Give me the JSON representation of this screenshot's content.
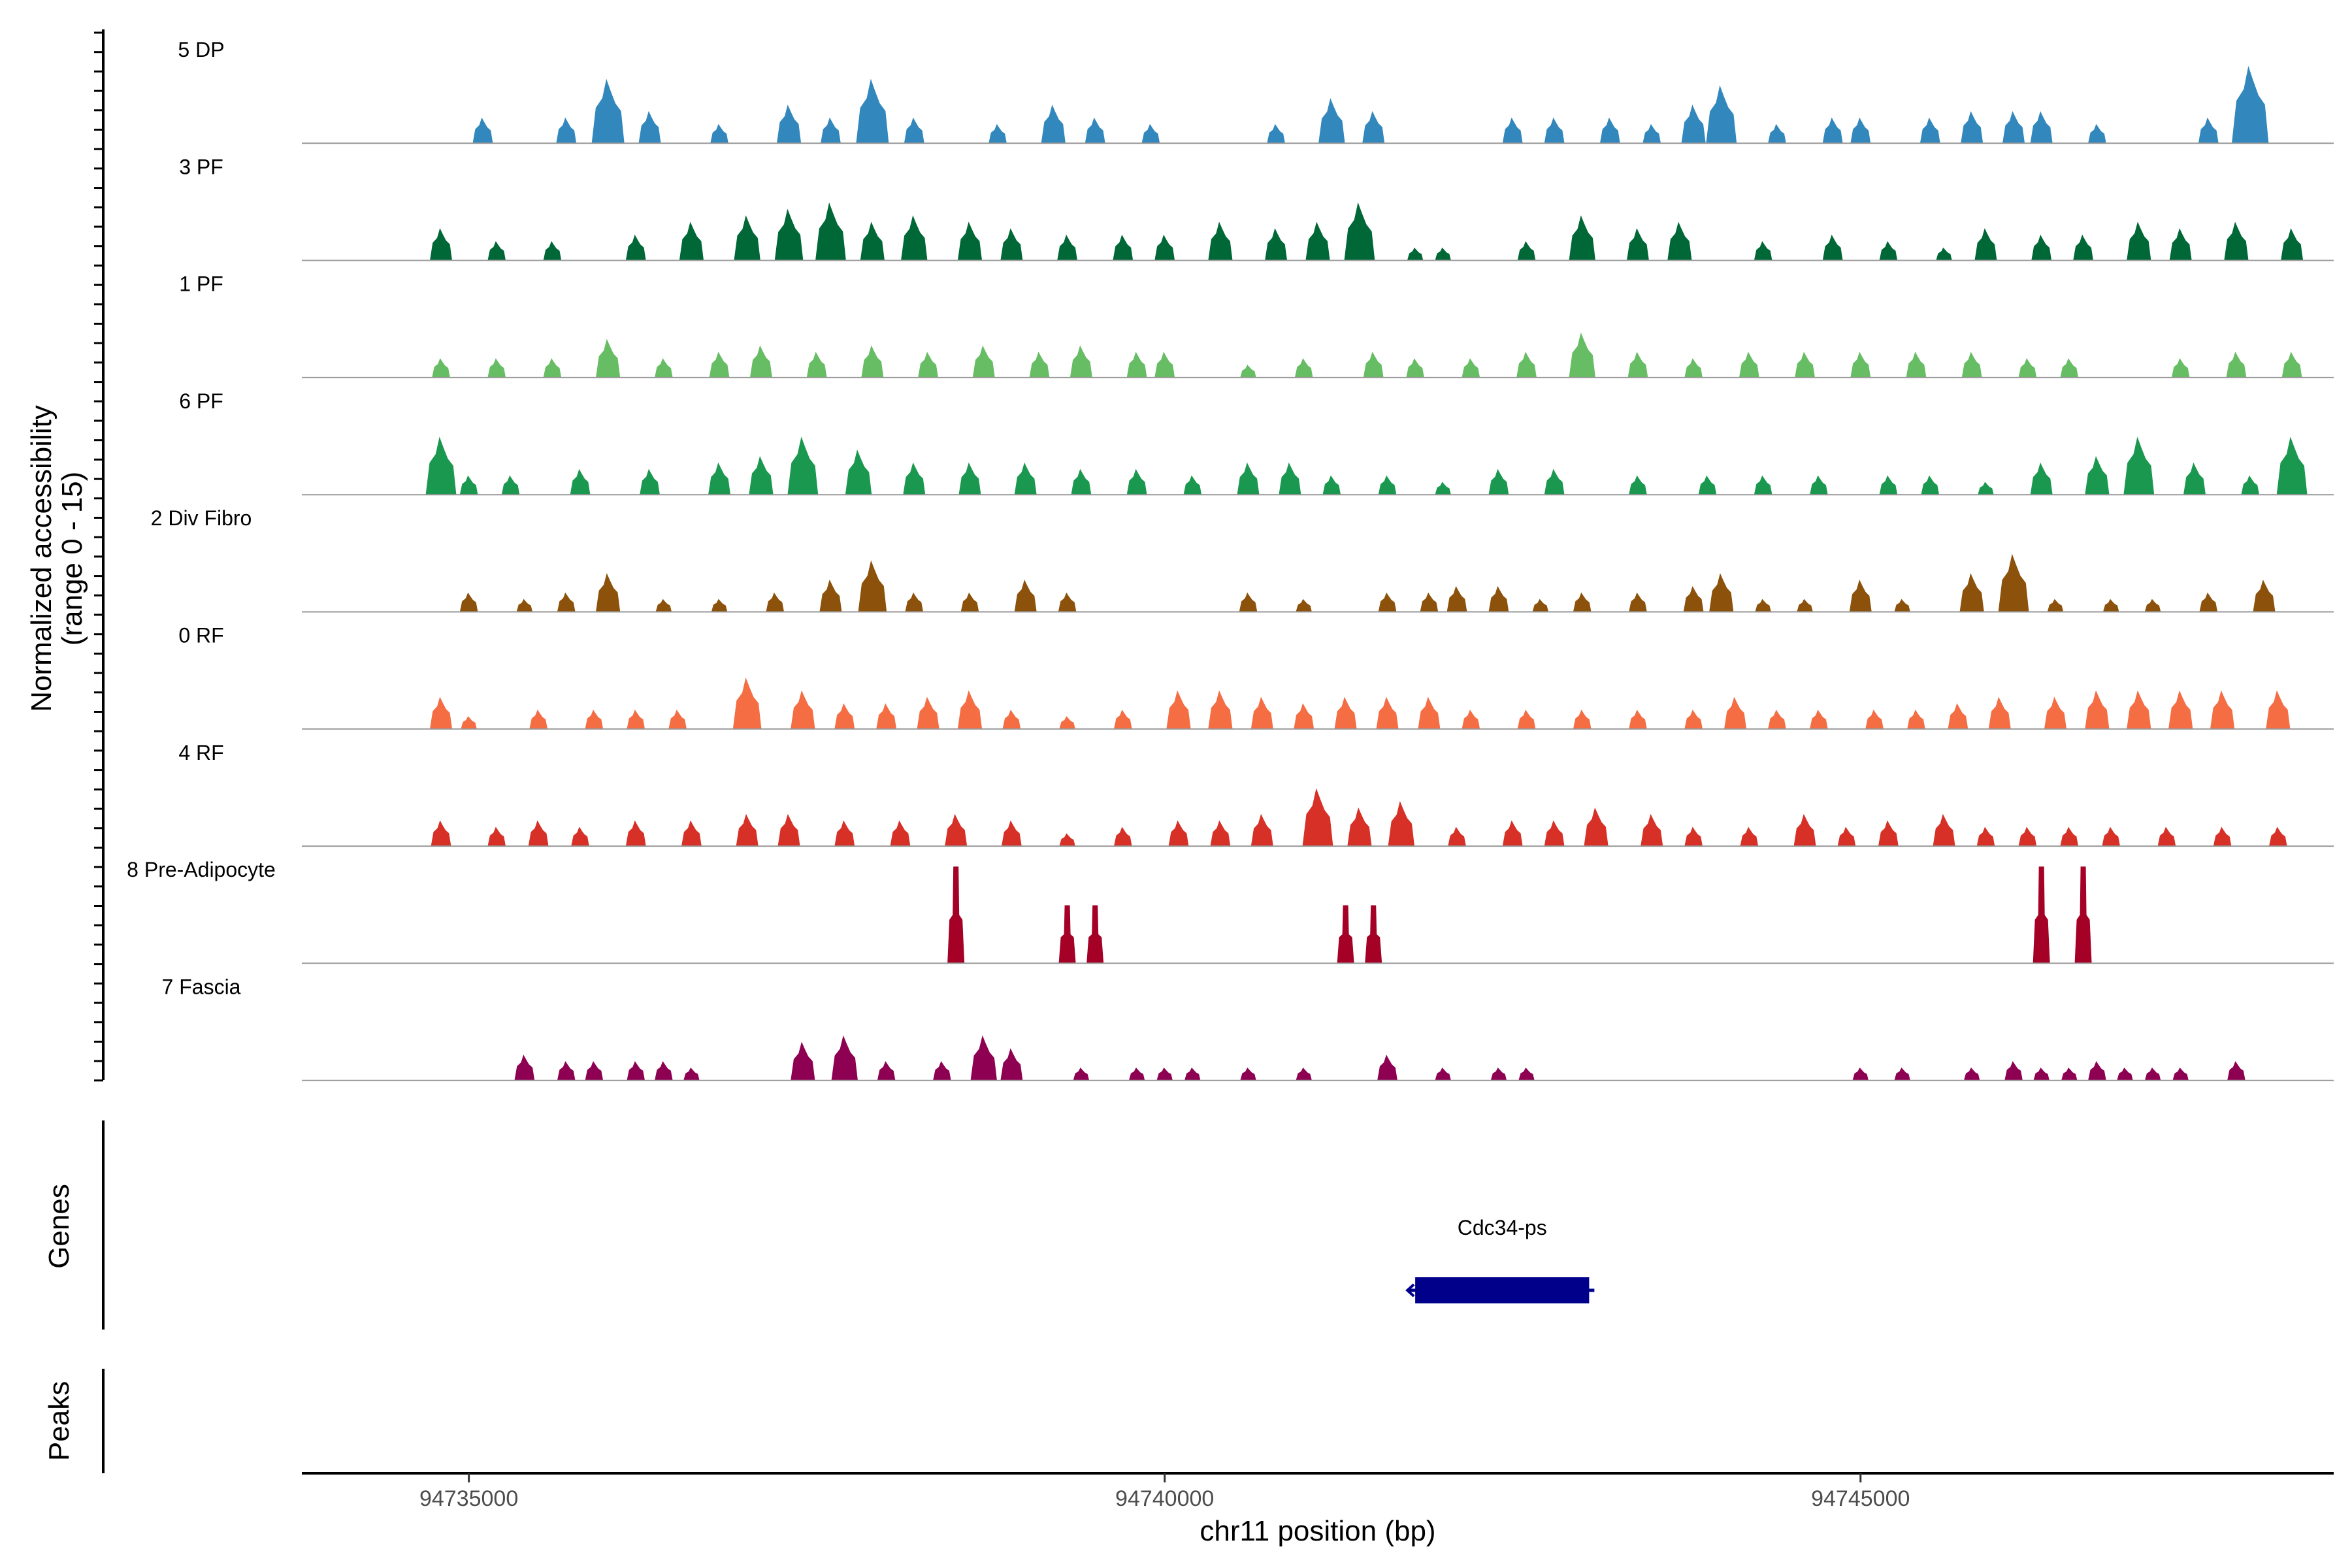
{
  "chart_data": {
    "type": "area",
    "title": "",
    "region": {
      "chromosome": "chr11",
      "start": 94733800,
      "end": 94748400
    },
    "ylabel": "Normalized accessibility",
    "ylabel_range": "(range 0 - 15)",
    "ylim": [
      0,
      15
    ],
    "xlabel": "chr11 position (bp)",
    "x_ticks": [
      {
        "value": 94735000,
        "label": "94735000"
      },
      {
        "value": 94740000,
        "label": "94740000"
      },
      {
        "value": 94745000,
        "label": "94745000"
      }
    ],
    "baseline_color": "#999999",
    "tracks": [
      {
        "name": "5 DP",
        "color": "#3288bd",
        "peaks": [
          [
            94735100,
            4
          ],
          [
            94735700,
            4
          ],
          [
            94736000,
            10
          ],
          [
            94736300,
            5
          ],
          [
            94736800,
            3
          ],
          [
            94737300,
            6
          ],
          [
            94737600,
            4
          ],
          [
            94737900,
            10
          ],
          [
            94738200,
            4
          ],
          [
            94738800,
            3
          ],
          [
            94739200,
            6
          ],
          [
            94739500,
            4
          ],
          [
            94739900,
            3
          ],
          [
            94740800,
            3
          ],
          [
            94741200,
            7
          ],
          [
            94741500,
            5
          ],
          [
            94742500,
            4
          ],
          [
            94742800,
            4
          ],
          [
            94743200,
            4
          ],
          [
            94743500,
            3
          ],
          [
            94743800,
            6
          ],
          [
            94744000,
            9
          ],
          [
            94744400,
            3
          ],
          [
            94744800,
            4
          ],
          [
            94745000,
            4
          ],
          [
            94745500,
            4
          ],
          [
            94745800,
            5
          ],
          [
            94746100,
            5
          ],
          [
            94746300,
            5
          ],
          [
            94746700,
            3
          ],
          [
            94747500,
            4
          ],
          [
            94747800,
            12
          ]
        ]
      },
      {
        "name": "3 PF",
        "color": "#006837",
        "peaks": [
          [
            94734800,
            5
          ],
          [
            94735200,
            3
          ],
          [
            94735600,
            3
          ],
          [
            94736200,
            4
          ],
          [
            94736600,
            6
          ],
          [
            94737000,
            7
          ],
          [
            94737300,
            8
          ],
          [
            94737600,
            9
          ],
          [
            94737900,
            6
          ],
          [
            94738200,
            7
          ],
          [
            94738600,
            6
          ],
          [
            94738900,
            5
          ],
          [
            94739300,
            4
          ],
          [
            94739700,
            4
          ],
          [
            94740000,
            4
          ],
          [
            94740400,
            6
          ],
          [
            94740800,
            5
          ],
          [
            94741100,
            6
          ],
          [
            94741400,
            9
          ],
          [
            94741800,
            2
          ],
          [
            94742000,
            2
          ],
          [
            94742600,
            3
          ],
          [
            94743000,
            7
          ],
          [
            94743400,
            5
          ],
          [
            94743700,
            6
          ],
          [
            94744300,
            3
          ],
          [
            94744800,
            4
          ],
          [
            94745200,
            3
          ],
          [
            94745600,
            2
          ],
          [
            94745900,
            5
          ],
          [
            94746300,
            4
          ],
          [
            94746600,
            4
          ],
          [
            94747000,
            6
          ],
          [
            94747300,
            5
          ],
          [
            94747700,
            6
          ],
          [
            94748100,
            5
          ]
        ]
      },
      {
        "name": "1 PF",
        "color": "#66bd63",
        "peaks": [
          [
            94734800,
            3
          ],
          [
            94735200,
            3
          ],
          [
            94735600,
            3
          ],
          [
            94736000,
            6
          ],
          [
            94736400,
            3
          ],
          [
            94736800,
            4
          ],
          [
            94737100,
            5
          ],
          [
            94737500,
            4
          ],
          [
            94737900,
            5
          ],
          [
            94738300,
            4
          ],
          [
            94738700,
            5
          ],
          [
            94739100,
            4
          ],
          [
            94739400,
            5
          ],
          [
            94739800,
            4
          ],
          [
            94740000,
            4
          ],
          [
            94740600,
            2
          ],
          [
            94741000,
            3
          ],
          [
            94741500,
            4
          ],
          [
            94741800,
            3
          ],
          [
            94742200,
            3
          ],
          [
            94742600,
            4
          ],
          [
            94743000,
            7
          ],
          [
            94743400,
            4
          ],
          [
            94743800,
            3
          ],
          [
            94744200,
            4
          ],
          [
            94744600,
            4
          ],
          [
            94745000,
            4
          ],
          [
            94745400,
            4
          ],
          [
            94745800,
            4
          ],
          [
            94746200,
            3
          ],
          [
            94746500,
            3
          ],
          [
            94747300,
            3
          ],
          [
            94747700,
            4
          ],
          [
            94748100,
            4
          ]
        ]
      },
      {
        "name": "6 PF",
        "color": "#1a9850",
        "peaks": [
          [
            94734800,
            9
          ],
          [
            94735000,
            3
          ],
          [
            94735300,
            3
          ],
          [
            94735800,
            4
          ],
          [
            94736300,
            4
          ],
          [
            94736800,
            5
          ],
          [
            94737100,
            6
          ],
          [
            94737400,
            9
          ],
          [
            94737800,
            7
          ],
          [
            94738200,
            5
          ],
          [
            94738600,
            5
          ],
          [
            94739000,
            5
          ],
          [
            94739400,
            4
          ],
          [
            94739800,
            4
          ],
          [
            94740200,
            3
          ],
          [
            94740600,
            5
          ],
          [
            94740900,
            5
          ],
          [
            94741200,
            3
          ],
          [
            94741600,
            3
          ],
          [
            94742000,
            2
          ],
          [
            94742400,
            4
          ],
          [
            94742800,
            4
          ],
          [
            94743400,
            3
          ],
          [
            94743900,
            3
          ],
          [
            94744300,
            3
          ],
          [
            94744700,
            3
          ],
          [
            94745200,
            3
          ],
          [
            94745500,
            3
          ],
          [
            94745900,
            2
          ],
          [
            94746300,
            5
          ],
          [
            94746700,
            6
          ],
          [
            94747000,
            9
          ],
          [
            94747400,
            5
          ],
          [
            94747800,
            3
          ],
          [
            94748100,
            9
          ]
        ]
      },
      {
        "name": "2 Div Fibro",
        "color": "#8c510a",
        "peaks": [
          [
            94735000,
            3
          ],
          [
            94735400,
            2
          ],
          [
            94735700,
            3
          ],
          [
            94736000,
            6
          ],
          [
            94736400,
            2
          ],
          [
            94736800,
            2
          ],
          [
            94737200,
            3
          ],
          [
            94737600,
            5
          ],
          [
            94737900,
            8
          ],
          [
            94738200,
            3
          ],
          [
            94738600,
            3
          ],
          [
            94739000,
            5
          ],
          [
            94739300,
            3
          ],
          [
            94740600,
            3
          ],
          [
            94741000,
            2
          ],
          [
            94741600,
            3
          ],
          [
            94741900,
            3
          ],
          [
            94742100,
            4
          ],
          [
            94742400,
            4
          ],
          [
            94742700,
            2
          ],
          [
            94743000,
            3
          ],
          [
            94743400,
            3
          ],
          [
            94743800,
            4
          ],
          [
            94744000,
            6
          ],
          [
            94744300,
            2
          ],
          [
            94744600,
            2
          ],
          [
            94745000,
            5
          ],
          [
            94745300,
            2
          ],
          [
            94745800,
            6
          ],
          [
            94746100,
            9
          ],
          [
            94746400,
            2
          ],
          [
            94746800,
            2
          ],
          [
            94747100,
            2
          ],
          [
            94747500,
            3
          ],
          [
            94747900,
            5
          ]
        ]
      },
      {
        "name": "0 RF",
        "color": "#f46d43",
        "peaks": [
          [
            94734800,
            5
          ],
          [
            94735000,
            2
          ],
          [
            94735500,
            3
          ],
          [
            94735900,
            3
          ],
          [
            94736200,
            3
          ],
          [
            94736500,
            3
          ],
          [
            94737000,
            8
          ],
          [
            94737400,
            6
          ],
          [
            94737700,
            4
          ],
          [
            94738000,
            4
          ],
          [
            94738300,
            5
          ],
          [
            94738600,
            6
          ],
          [
            94738900,
            3
          ],
          [
            94739300,
            2
          ],
          [
            94739700,
            3
          ],
          [
            94740100,
            6
          ],
          [
            94740400,
            6
          ],
          [
            94740700,
            5
          ],
          [
            94741000,
            4
          ],
          [
            94741300,
            5
          ],
          [
            94741600,
            5
          ],
          [
            94741900,
            5
          ],
          [
            94742200,
            3
          ],
          [
            94742600,
            3
          ],
          [
            94743000,
            3
          ],
          [
            94743400,
            3
          ],
          [
            94743800,
            3
          ],
          [
            94744100,
            5
          ],
          [
            94744400,
            3
          ],
          [
            94744700,
            3
          ],
          [
            94745100,
            3
          ],
          [
            94745400,
            3
          ],
          [
            94745700,
            4
          ],
          [
            94746000,
            5
          ],
          [
            94746400,
            5
          ],
          [
            94746700,
            6
          ],
          [
            94747000,
            6
          ],
          [
            94747300,
            6
          ],
          [
            94747600,
            6
          ],
          [
            94748000,
            6
          ]
        ]
      },
      {
        "name": "4 RF",
        "color": "#d73027",
        "peaks": [
          [
            94734800,
            4
          ],
          [
            94735200,
            3
          ],
          [
            94735500,
            4
          ],
          [
            94735800,
            3
          ],
          [
            94736200,
            4
          ],
          [
            94736600,
            4
          ],
          [
            94737000,
            5
          ],
          [
            94737300,
            5
          ],
          [
            94737700,
            4
          ],
          [
            94738100,
            4
          ],
          [
            94738500,
            5
          ],
          [
            94738900,
            4
          ],
          [
            94739300,
            2
          ],
          [
            94739700,
            3
          ],
          [
            94740100,
            4
          ],
          [
            94740400,
            4
          ],
          [
            94740700,
            5
          ],
          [
            94741100,
            9
          ],
          [
            94741400,
            6
          ],
          [
            94741700,
            7
          ],
          [
            94742100,
            3
          ],
          [
            94742500,
            4
          ],
          [
            94742800,
            4
          ],
          [
            94743100,
            6
          ],
          [
            94743500,
            5
          ],
          [
            94743800,
            3
          ],
          [
            94744200,
            3
          ],
          [
            94744600,
            5
          ],
          [
            94744900,
            3
          ],
          [
            94745200,
            4
          ],
          [
            94745600,
            5
          ],
          [
            94745900,
            3
          ],
          [
            94746200,
            3
          ],
          [
            94746500,
            3
          ],
          [
            94746800,
            3
          ],
          [
            94747200,
            3
          ],
          [
            94747600,
            3
          ],
          [
            94748000,
            3
          ]
        ]
      },
      {
        "name": "8 Pre-Adipocyte",
        "color": "#a50026",
        "peaks": [
          [
            94738500,
            15
          ],
          [
            94739300,
            9
          ],
          [
            94739500,
            9
          ],
          [
            94741300,
            9
          ],
          [
            94741500,
            9
          ],
          [
            94746300,
            15
          ],
          [
            94746600,
            15
          ]
        ]
      },
      {
        "name": "7 Fascia",
        "color": "#8e0152",
        "peaks": [
          [
            94735400,
            4
          ],
          [
            94735700,
            3
          ],
          [
            94735900,
            3
          ],
          [
            94736200,
            3
          ],
          [
            94736400,
            3
          ],
          [
            94736600,
            2
          ],
          [
            94737400,
            6
          ],
          [
            94737700,
            7
          ],
          [
            94738000,
            3
          ],
          [
            94738400,
            3
          ],
          [
            94738700,
            7
          ],
          [
            94738900,
            5
          ],
          [
            94739400,
            2
          ],
          [
            94739800,
            2
          ],
          [
            94740000,
            2
          ],
          [
            94740200,
            2
          ],
          [
            94740600,
            2
          ],
          [
            94741000,
            2
          ],
          [
            94741600,
            4
          ],
          [
            94742000,
            2
          ],
          [
            94742400,
            2
          ],
          [
            94742600,
            2
          ],
          [
            94745000,
            2
          ],
          [
            94745300,
            2
          ],
          [
            94745800,
            2
          ],
          [
            94746100,
            3
          ],
          [
            94746300,
            2
          ],
          [
            94746500,
            2
          ],
          [
            94746700,
            3
          ],
          [
            94746900,
            2
          ],
          [
            94747100,
            2
          ],
          [
            94747300,
            2
          ],
          [
            94747700,
            3
          ]
        ]
      }
    ],
    "genes_track": {
      "label": "Genes",
      "genes": [
        {
          "name": "Cdc34-ps",
          "start": 94741800,
          "end": 94743050,
          "strand": "-",
          "color": "#00008b"
        }
      ]
    },
    "peaks_track": {
      "label": "Peaks"
    }
  }
}
